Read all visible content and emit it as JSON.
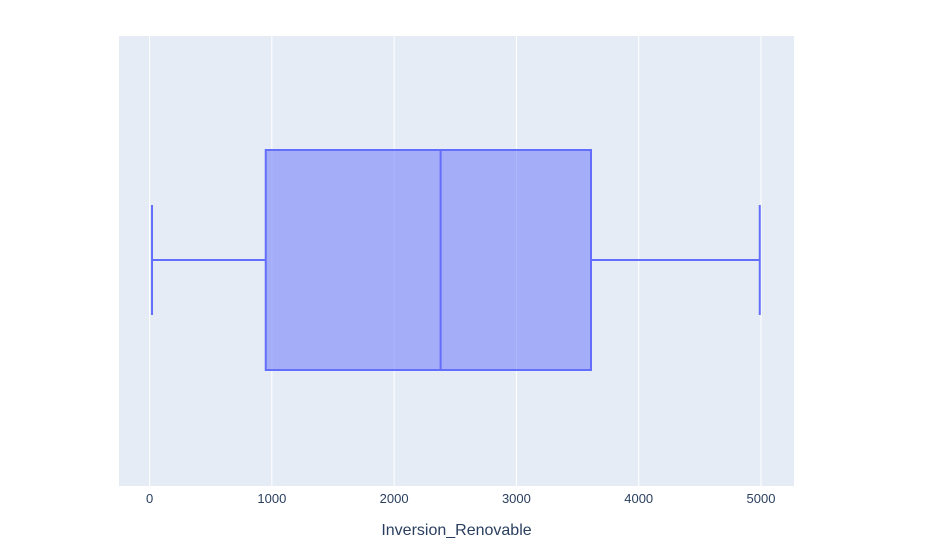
{
  "chart_data": {
    "type": "box",
    "orientation": "horizontal",
    "xlabel": "Inversion_Renovable",
    "ylabel": "",
    "xlim": [
      -250,
      5270
    ],
    "x_ticks": [
      0,
      1000,
      2000,
      3000,
      4000,
      5000
    ],
    "x_tick_labels": [
      "0",
      "1000",
      "2000",
      "3000",
      "4000",
      "5000"
    ],
    "grid": true,
    "box": {
      "lower_fence": 20,
      "q1": 950,
      "median": 2380,
      "q3": 3610,
      "upper_fence": 4990
    },
    "colors": {
      "plot_background": "#e5ecf6",
      "gridline": "#ffffff",
      "box_line": "#636efa",
      "box_fill": "#636efa",
      "box_fill_opacity": 0.5,
      "text": "#2a3f5f"
    }
  }
}
